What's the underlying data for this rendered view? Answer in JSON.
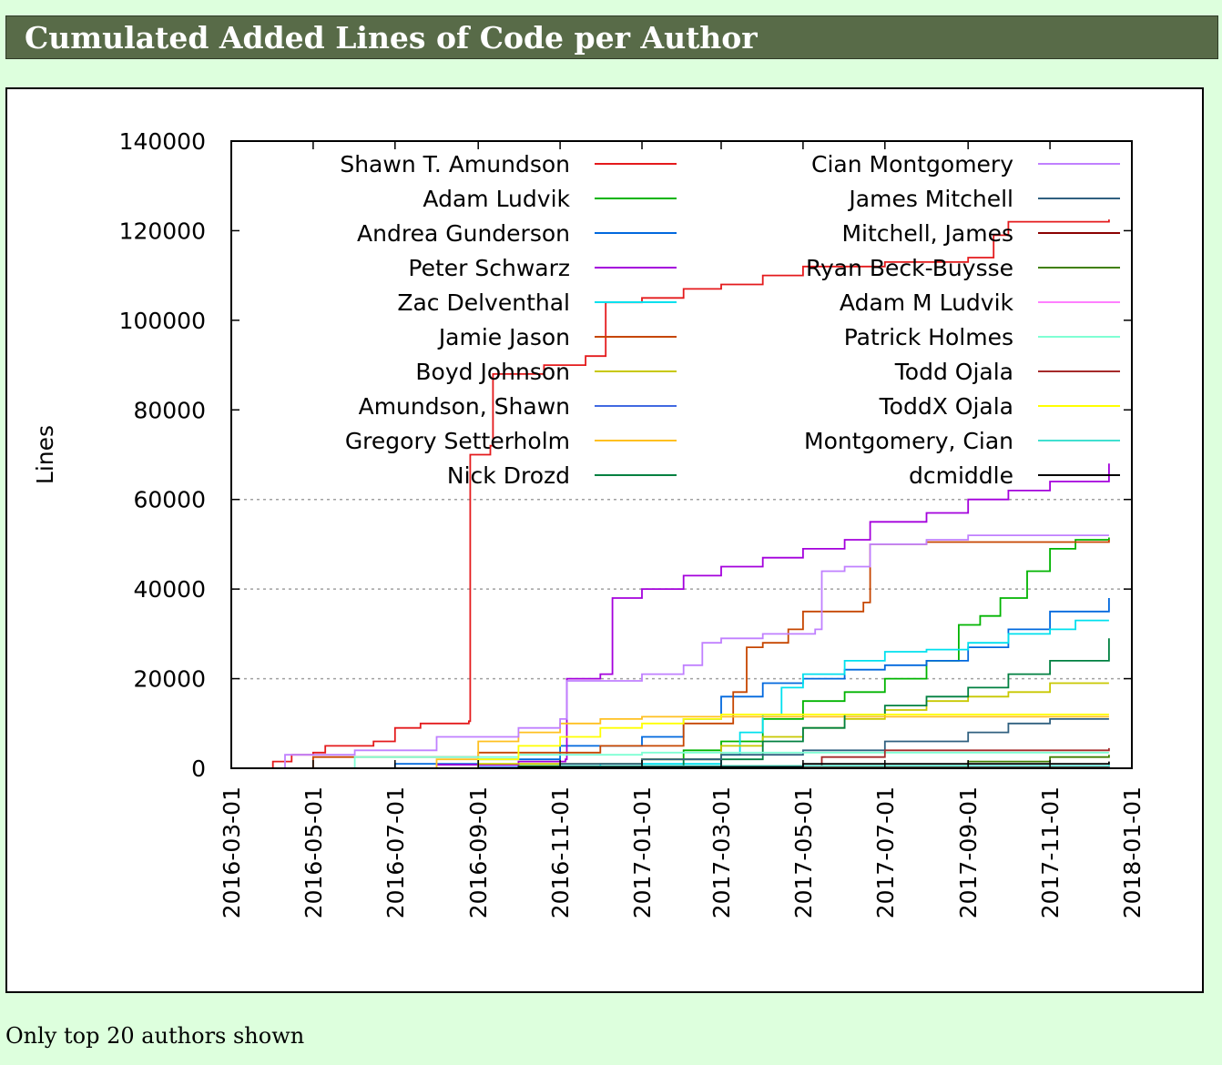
{
  "page": {
    "heading": "Cumulated Added Lines of Code per Author",
    "note": "Only top 20 authors shown"
  },
  "chart_data": {
    "type": "line",
    "title": "",
    "xlabel": "",
    "ylabel": "Lines",
    "x_type": "date",
    "xlim": [
      "2016-03-01",
      "2018-01-01"
    ],
    "ylim": [
      0,
      140000
    ],
    "x_ticks": [
      "2016-03-01",
      "2016-05-01",
      "2016-07-01",
      "2016-09-01",
      "2016-11-01",
      "2017-01-01",
      "2017-03-01",
      "2017-05-01",
      "2017-07-01",
      "2017-09-01",
      "2017-11-01",
      "2018-01-01"
    ],
    "y_ticks": [
      0,
      20000,
      40000,
      60000,
      80000,
      100000,
      120000,
      140000
    ],
    "y_tick_labels": [
      "0",
      "20000",
      "40000",
      "60000",
      "80000",
      "100000",
      "120000",
      "140000"
    ],
    "grid": "horizontal dashed at 20000, 40000, 60000",
    "legend_position": "top, inside, two columns",
    "series": [
      {
        "name": "Shawn T. Amundson",
        "color": "#e41a1c",
        "points": [
          [
            "2016-03-20",
            0
          ],
          [
            "2016-04-01",
            1500
          ],
          [
            "2016-04-15",
            3000
          ],
          [
            "2016-05-01",
            3500
          ],
          [
            "2016-05-10",
            5000
          ],
          [
            "2016-06-15",
            6000
          ],
          [
            "2016-07-01",
            9000
          ],
          [
            "2016-07-20",
            10000
          ],
          [
            "2016-08-25",
            10500
          ],
          [
            "2016-08-26",
            70000
          ],
          [
            "2016-09-10",
            72000
          ],
          [
            "2016-09-12",
            88000
          ],
          [
            "2016-10-20",
            90000
          ],
          [
            "2016-11-20",
            92000
          ],
          [
            "2016-12-05",
            104000
          ],
          [
            "2017-01-01",
            105000
          ],
          [
            "2017-02-01",
            107000
          ],
          [
            "2017-03-01",
            108000
          ],
          [
            "2017-04-01",
            110000
          ],
          [
            "2017-05-01",
            112000
          ],
          [
            "2017-07-01",
            113000
          ],
          [
            "2017-09-01",
            114000
          ],
          [
            "2017-09-20",
            119000
          ],
          [
            "2017-10-01",
            122000
          ],
          [
            "2017-12-15",
            122500
          ]
        ]
      },
      {
        "name": "Adam Ludvik",
        "color": "#00b400",
        "points": [
          [
            "2016-03-15",
            0
          ],
          [
            "2016-10-01",
            500
          ],
          [
            "2017-01-01",
            2000
          ],
          [
            "2017-02-01",
            4000
          ],
          [
            "2017-03-01",
            6000
          ],
          [
            "2017-04-01",
            11000
          ],
          [
            "2017-05-01",
            15000
          ],
          [
            "2017-06-01",
            17000
          ],
          [
            "2017-07-01",
            20000
          ],
          [
            "2017-08-01",
            24000
          ],
          [
            "2017-08-25",
            32000
          ],
          [
            "2017-09-10",
            34000
          ],
          [
            "2017-09-25",
            38000
          ],
          [
            "2017-10-15",
            44000
          ],
          [
            "2017-11-01",
            49000
          ],
          [
            "2017-11-20",
            51000
          ],
          [
            "2017-12-15",
            51500
          ]
        ]
      },
      {
        "name": "Andrea Gunderson",
        "color": "#0068de",
        "points": [
          [
            "2016-03-15",
            0
          ],
          [
            "2016-07-01",
            1000
          ],
          [
            "2016-09-01",
            2000
          ],
          [
            "2016-11-01",
            5000
          ],
          [
            "2017-01-01",
            7000
          ],
          [
            "2017-02-01",
            11000
          ],
          [
            "2017-03-01",
            16000
          ],
          [
            "2017-04-01",
            19000
          ],
          [
            "2017-05-01",
            20000
          ],
          [
            "2017-06-01",
            22000
          ],
          [
            "2017-07-01",
            23000
          ],
          [
            "2017-08-01",
            24000
          ],
          [
            "2017-09-01",
            27000
          ],
          [
            "2017-10-01",
            31000
          ],
          [
            "2017-11-01",
            35000
          ],
          [
            "2017-12-15",
            38000
          ]
        ]
      },
      {
        "name": "Peter Schwarz",
        "color": "#a400dc",
        "points": [
          [
            "2016-03-15",
            0
          ],
          [
            "2016-08-01",
            800
          ],
          [
            "2016-10-01",
            1500
          ],
          [
            "2016-11-05",
            2000
          ],
          [
            "2016-11-06",
            20000
          ],
          [
            "2016-12-01",
            21000
          ],
          [
            "2016-12-10",
            38000
          ],
          [
            "2017-01-01",
            40000
          ],
          [
            "2017-02-01",
            43000
          ],
          [
            "2017-03-01",
            45000
          ],
          [
            "2017-04-01",
            47000
          ],
          [
            "2017-05-01",
            49000
          ],
          [
            "2017-06-01",
            51000
          ],
          [
            "2017-06-20",
            55000
          ],
          [
            "2017-08-01",
            57000
          ],
          [
            "2017-09-01",
            60000
          ],
          [
            "2017-10-01",
            62000
          ],
          [
            "2017-11-01",
            64000
          ],
          [
            "2017-12-15",
            68000
          ]
        ]
      },
      {
        "name": "Zac Delventhal",
        "color": "#00e0ee",
        "points": [
          [
            "2016-03-15",
            0
          ],
          [
            "2016-12-01",
            1000
          ],
          [
            "2017-03-01",
            3000
          ],
          [
            "2017-03-15",
            8000
          ],
          [
            "2017-04-01",
            12000
          ],
          [
            "2017-04-15",
            18000
          ],
          [
            "2017-05-01",
            21000
          ],
          [
            "2017-06-01",
            24000
          ],
          [
            "2017-07-01",
            26000
          ],
          [
            "2017-08-01",
            26500
          ],
          [
            "2017-09-01",
            28000
          ],
          [
            "2017-10-01",
            30000
          ],
          [
            "2017-11-01",
            31000
          ],
          [
            "2017-11-20",
            33000
          ],
          [
            "2017-12-15",
            33000
          ]
        ]
      },
      {
        "name": "Jamie Jason",
        "color": "#c64600",
        "points": [
          [
            "2016-03-15",
            0
          ],
          [
            "2016-05-01",
            2500
          ],
          [
            "2016-09-01",
            3500
          ],
          [
            "2016-12-01",
            5000
          ],
          [
            "2017-02-01",
            10000
          ],
          [
            "2017-03-10",
            17000
          ],
          [
            "2017-03-20",
            27000
          ],
          [
            "2017-04-01",
            28000
          ],
          [
            "2017-04-20",
            31000
          ],
          [
            "2017-05-01",
            35000
          ],
          [
            "2017-06-15",
            37000
          ],
          [
            "2017-06-20",
            50000
          ],
          [
            "2017-08-01",
            50500
          ],
          [
            "2017-12-15",
            51000
          ]
        ]
      },
      {
        "name": "Boyd Johnson",
        "color": "#c8c800",
        "points": [
          [
            "2016-03-15",
            0
          ],
          [
            "2016-09-01",
            1000
          ],
          [
            "2017-01-01",
            2000
          ],
          [
            "2017-03-01",
            5000
          ],
          [
            "2017-04-01",
            7000
          ],
          [
            "2017-05-01",
            9000
          ],
          [
            "2017-06-01",
            11000
          ],
          [
            "2017-07-01",
            13000
          ],
          [
            "2017-08-01",
            15000
          ],
          [
            "2017-09-01",
            16000
          ],
          [
            "2017-10-01",
            17000
          ],
          [
            "2017-11-01",
            19000
          ],
          [
            "2017-12-15",
            19000
          ]
        ]
      },
      {
        "name": "Amundson, Shawn",
        "color": "#4169e1",
        "points": [
          [
            "2016-03-15",
            0
          ],
          [
            "2016-09-01",
            300
          ],
          [
            "2017-12-15",
            400
          ]
        ]
      },
      {
        "name": "Gregory Setterholm",
        "color": "#ffc020",
        "points": [
          [
            "2016-03-15",
            0
          ],
          [
            "2016-08-01",
            2000
          ],
          [
            "2016-09-01",
            6000
          ],
          [
            "2016-10-01",
            8000
          ],
          [
            "2016-11-01",
            10000
          ],
          [
            "2016-12-01",
            11000
          ],
          [
            "2017-01-01",
            11500
          ],
          [
            "2017-12-15",
            11500
          ]
        ]
      },
      {
        "name": "Nick Drozd",
        "color": "#008040",
        "points": [
          [
            "2016-03-15",
            0
          ],
          [
            "2016-11-01",
            500
          ],
          [
            "2017-02-01",
            2000
          ],
          [
            "2017-04-01",
            6000
          ],
          [
            "2017-05-01",
            9000
          ],
          [
            "2017-06-01",
            12000
          ],
          [
            "2017-07-01",
            14000
          ],
          [
            "2017-08-01",
            16000
          ],
          [
            "2017-09-01",
            18000
          ],
          [
            "2017-10-01",
            21000
          ],
          [
            "2017-11-01",
            24000
          ],
          [
            "2017-12-15",
            29000
          ]
        ]
      },
      {
        "name": "Cian Montgomery",
        "color": "#c080ff",
        "points": [
          [
            "2016-03-20",
            0
          ],
          [
            "2016-04-10",
            3000
          ],
          [
            "2016-06-01",
            4000
          ],
          [
            "2016-08-01",
            7000
          ],
          [
            "2016-10-01",
            9000
          ],
          [
            "2016-11-01",
            11000
          ],
          [
            "2016-11-06",
            19500
          ],
          [
            "2017-01-01",
            21000
          ],
          [
            "2017-02-01",
            23000
          ],
          [
            "2017-02-15",
            28000
          ],
          [
            "2017-03-01",
            29000
          ],
          [
            "2017-04-01",
            30000
          ],
          [
            "2017-05-10",
            31000
          ],
          [
            "2017-05-15",
            44000
          ],
          [
            "2017-06-01",
            45000
          ],
          [
            "2017-06-20",
            50000
          ],
          [
            "2017-08-01",
            51000
          ],
          [
            "2017-09-01",
            52000
          ],
          [
            "2017-12-15",
            52000
          ]
        ]
      },
      {
        "name": "James Mitchell",
        "color": "#306080",
        "points": [
          [
            "2016-03-15",
            0
          ],
          [
            "2016-11-01",
            1000
          ],
          [
            "2017-01-01",
            2000
          ],
          [
            "2017-03-01",
            3000
          ],
          [
            "2017-05-01",
            4000
          ],
          [
            "2017-07-01",
            6000
          ],
          [
            "2017-09-01",
            8000
          ],
          [
            "2017-10-01",
            10000
          ],
          [
            "2017-11-01",
            11000
          ],
          [
            "2017-12-15",
            11000
          ]
        ]
      },
      {
        "name": "Mitchell, James",
        "color": "#8b0000",
        "points": [
          [
            "2016-03-15",
            0
          ],
          [
            "2017-05-01",
            200
          ],
          [
            "2017-12-15",
            300
          ]
        ]
      },
      {
        "name": "Ryan Beck-Buysse",
        "color": "#408000",
        "points": [
          [
            "2016-03-15",
            0
          ],
          [
            "2017-03-01",
            500
          ],
          [
            "2017-09-01",
            1500
          ],
          [
            "2017-11-01",
            2500
          ],
          [
            "2017-12-15",
            3000
          ]
        ]
      },
      {
        "name": "Adam M Ludvik",
        "color": "#ff80ff",
        "points": [
          [
            "2016-03-15",
            0
          ],
          [
            "2017-12-15",
            100
          ]
        ]
      },
      {
        "name": "Patrick Holmes",
        "color": "#7fffd4",
        "points": [
          [
            "2016-03-15",
            0
          ],
          [
            "2016-06-01",
            2500
          ],
          [
            "2016-10-01",
            3000
          ],
          [
            "2017-01-01",
            3500
          ],
          [
            "2017-12-15",
            3500
          ]
        ]
      },
      {
        "name": "Todd Ojala",
        "color": "#a52a2a",
        "points": [
          [
            "2016-03-15",
            0
          ],
          [
            "2017-05-01",
            500
          ],
          [
            "2017-05-15",
            2500
          ],
          [
            "2017-07-01",
            4000
          ],
          [
            "2017-12-15",
            4500
          ]
        ]
      },
      {
        "name": "ToddX Ojala",
        "color": "#ffff00",
        "points": [
          [
            "2016-03-15",
            0
          ],
          [
            "2016-09-01",
            2000
          ],
          [
            "2016-10-01",
            5000
          ],
          [
            "2016-11-01",
            7000
          ],
          [
            "2016-12-01",
            9000
          ],
          [
            "2017-01-01",
            10000
          ],
          [
            "2017-02-01",
            11000
          ],
          [
            "2017-03-01",
            12000
          ],
          [
            "2017-12-15",
            12000
          ]
        ]
      },
      {
        "name": "Montgomery, Cian",
        "color": "#40e0d0",
        "points": [
          [
            "2016-03-15",
            0
          ],
          [
            "2016-11-01",
            500
          ],
          [
            "2017-12-15",
            1000
          ]
        ]
      },
      {
        "name": "dcmiddle",
        "color": "#000000",
        "points": [
          [
            "2016-03-15",
            0
          ],
          [
            "2016-10-01",
            300
          ],
          [
            "2017-05-01",
            1000
          ],
          [
            "2017-12-15",
            1500
          ]
        ]
      }
    ]
  }
}
